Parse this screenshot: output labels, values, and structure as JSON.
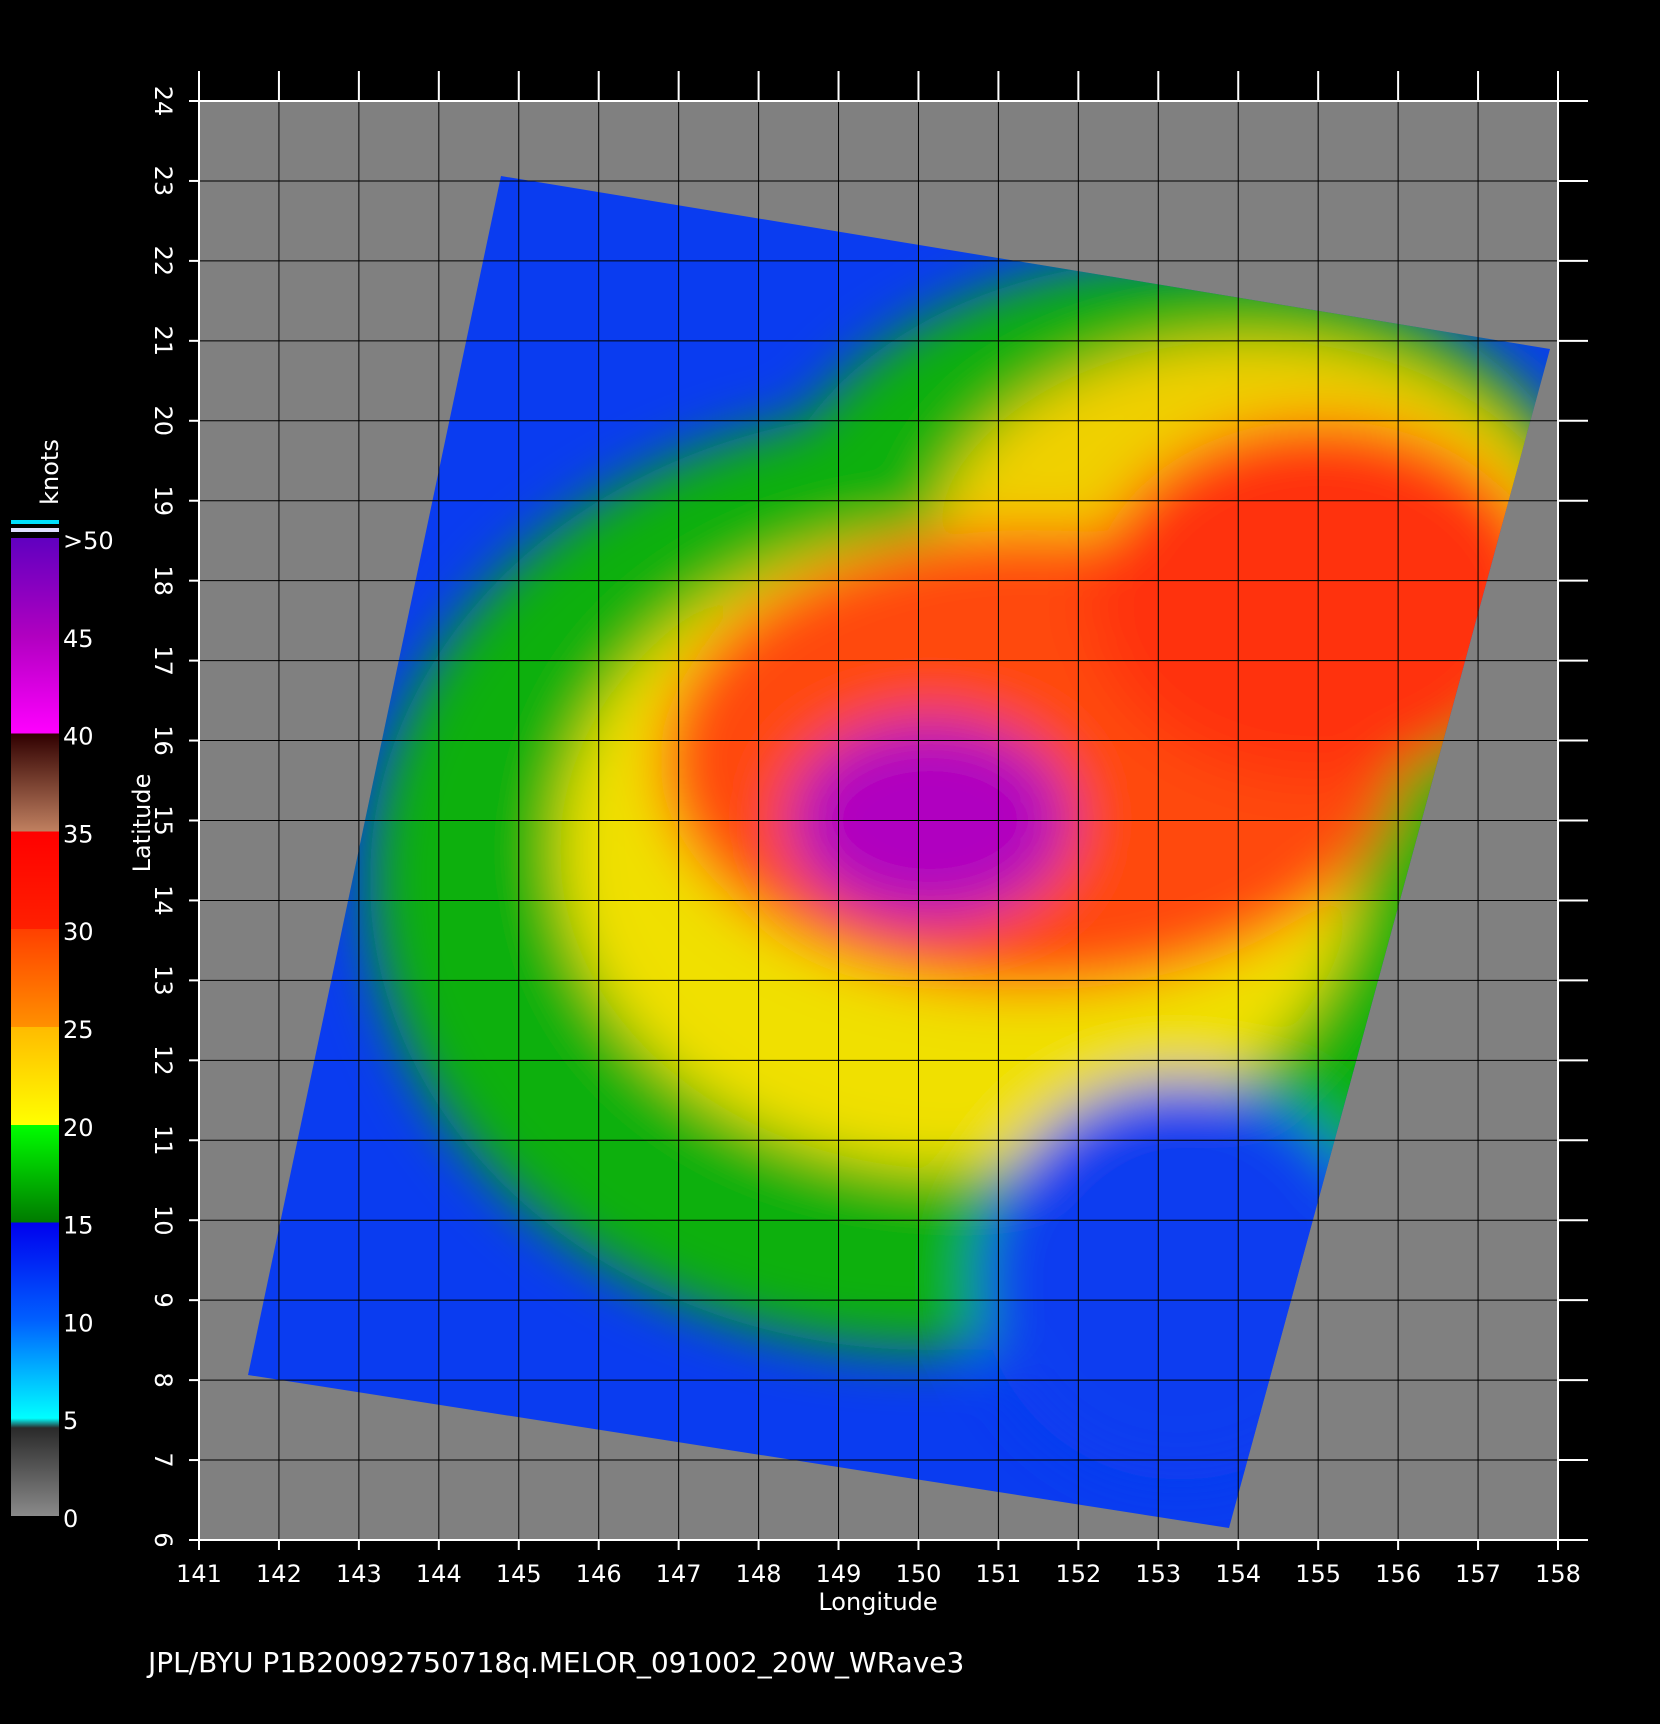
{
  "map": {
    "x_label": "Longitude",
    "y_label": "Latitude",
    "x_ticks": [
      141,
      142,
      143,
      144,
      145,
      146,
      147,
      148,
      149,
      150,
      151,
      152,
      153,
      154,
      155,
      156,
      157,
      158
    ],
    "y_ticks": [
      6,
      7,
      8,
      9,
      10,
      11,
      12,
      13,
      14,
      15,
      16,
      17,
      18,
      19,
      20,
      21,
      22,
      23,
      24
    ],
    "colorbar": {
      "unit": "knots",
      "levels": [
        0,
        5,
        10,
        15,
        20,
        25,
        30,
        35,
        40,
        45,
        {
          "value": 50,
          "label": ">50"
        }
      ]
    }
  },
  "footer": "JPL/BYU  P1B20092750718q.MELOR_091002_20W_WRave3"
}
